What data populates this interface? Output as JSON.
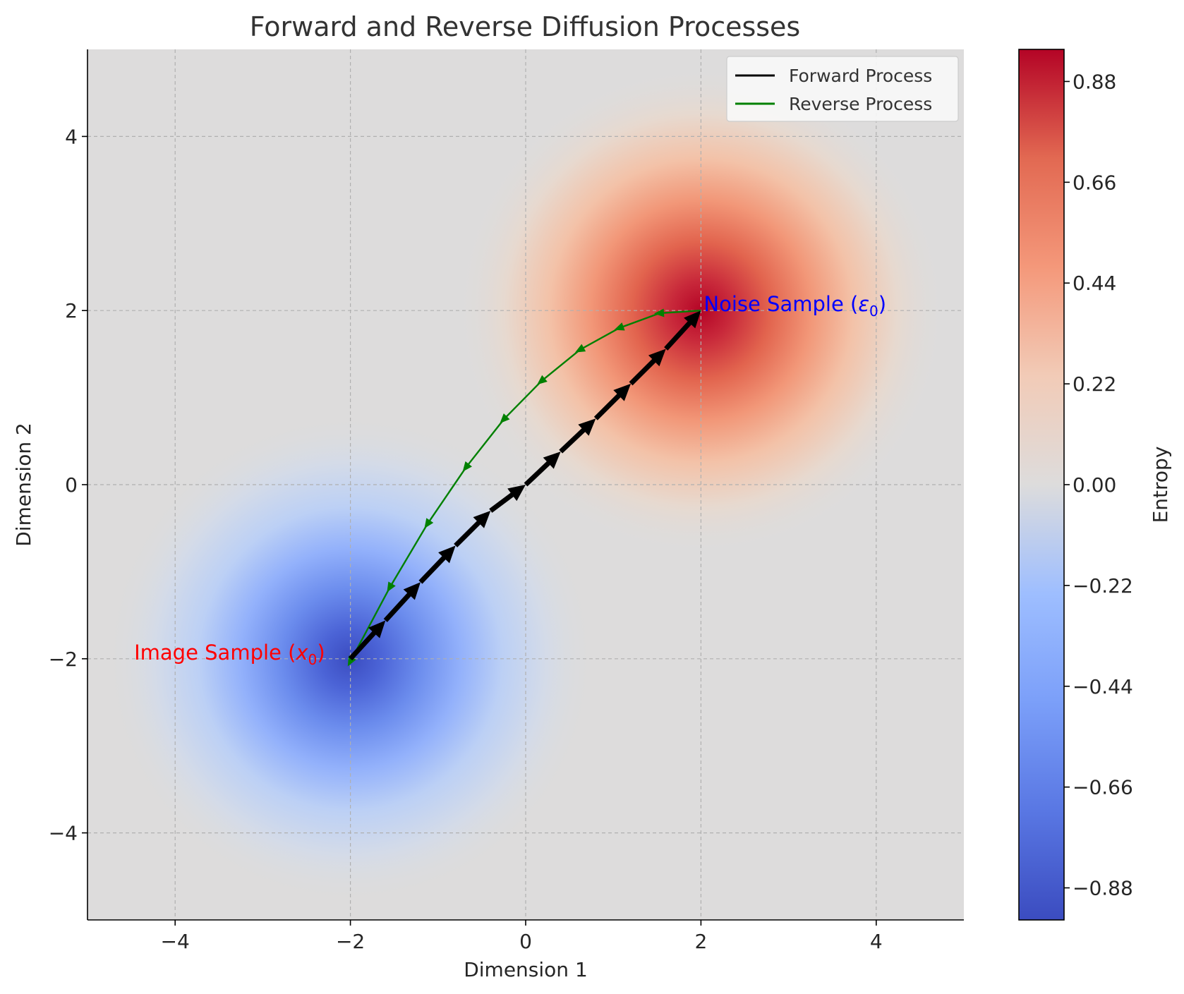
{
  "chart_data": {
    "type": "line",
    "title": "Forward and Reverse Diffusion Processes",
    "xlabel": "Dimension 1",
    "ylabel": "Dimension 2",
    "xlim": [
      -5,
      5
    ],
    "ylim": [
      -5,
      5
    ],
    "xticks": [
      -4,
      -2,
      0,
      2,
      4
    ],
    "yticks": [
      -4,
      -2,
      0,
      2,
      4
    ],
    "grid": true,
    "legend_position": "upper right",
    "background": {
      "type": "heatmap",
      "colormap": "coolwarm",
      "peaks": [
        {
          "x": 2,
          "y": 2,
          "value": 0.95
        },
        {
          "x": -2,
          "y": -2,
          "value": -0.95
        }
      ]
    },
    "colorbar": {
      "label": "Entropy",
      "range": [
        -0.95,
        0.95
      ],
      "ticks": [
        0.88,
        0.66,
        0.44,
        0.22,
        0.0,
        -0.22,
        -0.44,
        -0.66,
        -0.88
      ],
      "tick_labels": [
        "0.88",
        "0.66",
        "0.44",
        "0.22",
        "0.00",
        "−0.22",
        "−0.44",
        "−0.66",
        "−0.88"
      ]
    },
    "series": [
      {
        "name": "Forward Process",
        "color": "#000000",
        "style": "quiver arrows",
        "x": [
          -2.0,
          -1.6,
          -1.2,
          -0.8,
          -0.4,
          0.0,
          0.4,
          0.8,
          1.2,
          1.6,
          2.0
        ],
        "y": [
          -2.0,
          -1.56,
          -1.12,
          -0.7,
          -0.3,
          0.0,
          0.38,
          0.76,
          1.16,
          1.56,
          2.0
        ]
      },
      {
        "name": "Reverse Process",
        "color": "#008000",
        "style": "line with triangle markers",
        "x": [
          2.0,
          1.53,
          1.07,
          0.62,
          0.18,
          -0.25,
          -0.68,
          -1.12,
          -1.55,
          -2.0
        ],
        "y": [
          2.0,
          1.97,
          1.8,
          1.55,
          1.19,
          0.75,
          0.2,
          -0.45,
          -1.18,
          -2.03
        ]
      }
    ],
    "annotations": [
      {
        "text_main": "Noise Sample (",
        "symbol": "ε",
        "subscript": "0",
        "close": ")",
        "x": 2.0,
        "y": 2.0,
        "color": "#0000ff"
      },
      {
        "text_main": "Image Sample (",
        "symbol": "x",
        "subscript": "0",
        "close": ")",
        "x": -4.5,
        "y": -2.0,
        "color": "#ff0000"
      }
    ]
  }
}
